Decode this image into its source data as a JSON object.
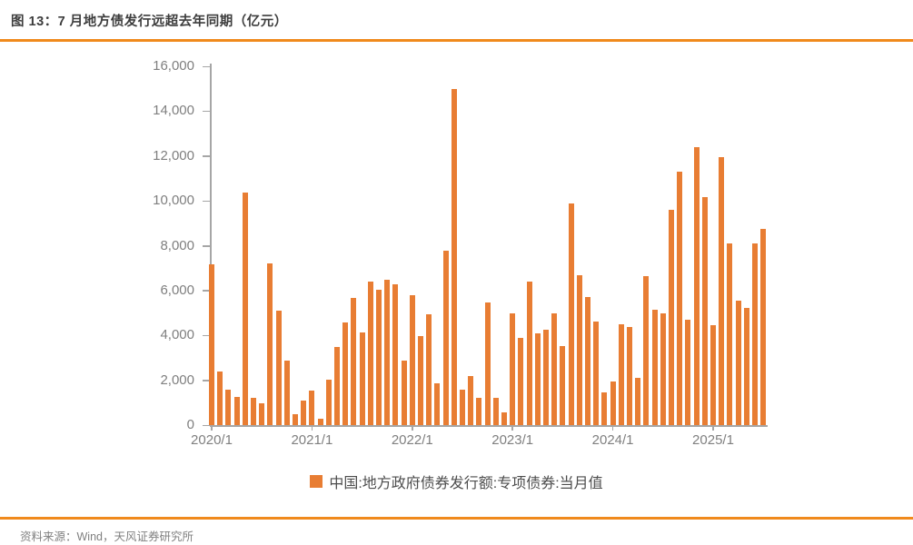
{
  "header": {
    "title": "图 13：7 月地方债发行远超去年同期（亿元）"
  },
  "legend": {
    "label": "中国:地方政府债券发行额:专项债券:当月值"
  },
  "footer": {
    "source": "资料来源：Wind，天风证券研究所"
  },
  "colors": {
    "bar": "#E87D33",
    "rule": "#F08A1C",
    "title_text": "#3D3D3D",
    "axis_line": "#A6A6A6",
    "axis_label": "#7F7F7F",
    "legend_text": "#4D4D4D",
    "source_text": "#808080"
  },
  "chart_data": {
    "type": "bar",
    "title": "图 13：7 月地方债发行远超去年同期（亿元）",
    "series_name": "中国:地方政府债券发行额:专项债券:当月值",
    "unit": "亿元",
    "grid": false,
    "legend_position": "bottom",
    "ylim": [
      0,
      16000
    ],
    "y_ticks": [
      0,
      2000,
      4000,
      6000,
      8000,
      10000,
      12000,
      14000,
      16000
    ],
    "y_tick_labels": [
      "0",
      "2,000",
      "4,000",
      "6,000",
      "8,000",
      "10,000",
      "12,000",
      "14,000",
      "16,000"
    ],
    "x_tick_indices": [
      0,
      12,
      24,
      36,
      48,
      60
    ],
    "x_tick_labels": [
      "2020/1",
      "2021/1",
      "2022/1",
      "2023/1",
      "2024/1",
      "2025/1"
    ],
    "x": [
      "2020/1",
      "2020/2",
      "2020/3",
      "2020/4",
      "2020/5",
      "2020/6",
      "2020/7",
      "2020/8",
      "2020/9",
      "2020/10",
      "2020/11",
      "2020/12",
      "2021/1",
      "2021/2",
      "2021/3",
      "2021/4",
      "2021/5",
      "2021/6",
      "2021/7",
      "2021/8",
      "2021/9",
      "2021/10",
      "2021/11",
      "2021/12",
      "2022/1",
      "2022/2",
      "2022/3",
      "2022/4",
      "2022/5",
      "2022/6",
      "2022/7",
      "2022/8",
      "2022/9",
      "2022/10",
      "2022/11",
      "2022/12",
      "2023/1",
      "2023/2",
      "2023/3",
      "2023/4",
      "2023/5",
      "2023/6",
      "2023/7",
      "2023/8",
      "2023/9",
      "2023/10",
      "2023/11",
      "2023/12",
      "2024/1",
      "2024/2",
      "2024/3",
      "2024/4",
      "2024/5",
      "2024/6",
      "2024/7",
      "2024/8",
      "2024/9",
      "2024/10",
      "2024/11",
      "2024/12",
      "2025/1",
      "2025/2",
      "2025/3",
      "2025/4",
      "2025/5",
      "2025/6",
      "2025/7"
    ],
    "values": [
      7150,
      2380,
      1580,
      1240,
      10350,
      1220,
      990,
      7210,
      5090,
      2860,
      470,
      1100,
      1550,
      270,
      2010,
      3470,
      4570,
      5660,
      4130,
      6390,
      6040,
      6500,
      6280,
      2860,
      5780,
      3960,
      4930,
      1880,
      7790,
      15000,
      1580,
      2180,
      1230,
      5470,
      1230,
      570,
      4970,
      3900,
      6410,
      4090,
      4240,
      5000,
      3540,
      9870,
      6690,
      5700,
      4630,
      1460,
      1960,
      4500,
      4360,
      2120,
      6640,
      5130,
      4970,
      9600,
      11290,
      4710,
      12410,
      10170,
      4470,
      11940,
      8100,
      5550,
      5230,
      8090,
      8740
    ]
  }
}
